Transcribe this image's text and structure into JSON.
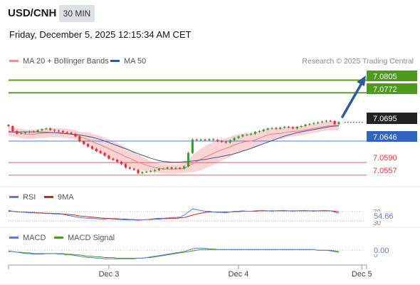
{
  "header": {
    "symbol": "USD/CNH",
    "timeframe": "30 MIN",
    "datetime": "Friday, December 5, 2025 12:15:34 AM CET"
  },
  "legend": {
    "ma20_label": "MA 20 + Bollinger Bands",
    "ma50_label": "MA 50",
    "credit": "Research © 2025 Trading Central"
  },
  "colors": {
    "candle_up": "#3a9e33",
    "candle_down": "#d93535",
    "ma20": "#e88080",
    "ma50": "#2f5b9a",
    "bollinger_fill": "#fad4d4",
    "target_lines": "#5aa01a",
    "pivot": "#4a7fd4",
    "support": "#e06060",
    "arrow": "#2f5b9a",
    "rsi": "#5a7fd0",
    "rsi_ma": "#d22020",
    "macd": "#5a7fd0",
    "macd_signal": "#4a9a20"
  },
  "price_levels": [
    {
      "label": "7.0805",
      "value": 7.0805,
      "style": "green-box"
    },
    {
      "label": "7.0772",
      "value": 7.0772,
      "style": "green-box"
    },
    {
      "label": "7.0695",
      "value": 7.0695,
      "style": "current"
    },
    {
      "label": "7.0646",
      "value": 7.0646,
      "style": "blue-box"
    },
    {
      "label": "7.0590",
      "value": 7.059,
      "style": "red-text"
    },
    {
      "label": "7.0557",
      "value": 7.0557,
      "style": "red-text"
    }
  ],
  "rsi": {
    "label": "RSI",
    "ma_label": "9MA",
    "value_label": "54.66",
    "level_70": "70",
    "level_30": "30"
  },
  "macd": {
    "label": "MACD",
    "signal_label": "MACD Signal",
    "value_label": "0.00",
    "zero_label": "0"
  },
  "x_axis": {
    "ticks": [
      "Dec 3",
      "Dec 4",
      "Dec 5"
    ]
  },
  "chart_data": {
    "type": "candlestick",
    "price_range": [
      7.054,
      7.083
    ],
    "x": [
      0,
      2,
      4,
      6,
      8,
      10,
      12,
      14,
      16,
      18,
      20,
      22,
      24,
      26,
      28,
      30,
      32,
      34,
      36,
      38,
      40,
      42,
      44,
      46,
      48,
      50,
      52,
      54,
      56,
      58,
      60,
      62,
      64,
      66,
      68,
      70,
      72,
      74,
      76,
      78,
      80,
      82,
      84,
      86,
      88,
      90,
      92,
      94,
      96,
      98,
      100,
      102,
      104,
      106,
      108,
      110,
      112,
      114,
      116,
      118,
      120,
      122,
      124,
      126,
      128,
      130,
      132,
      134,
      136,
      138,
      140,
      142,
      144,
      146,
      148,
      150,
      152,
      154,
      156,
      158
    ],
    "close": [
      7.0685,
      7.0672,
      7.0665,
      7.0667,
      7.0669,
      7.0671,
      7.067,
      7.0674,
      7.0677,
      7.0679,
      7.0675,
      7.0673,
      7.0672,
      7.0669,
      7.0668,
      7.0665,
      7.0658,
      7.0645,
      7.0638,
      7.0632,
      7.0626,
      7.062,
      7.0615,
      7.0608,
      7.06,
      7.0597,
      7.0592,
      7.0586,
      7.0577,
      7.0574,
      7.0571,
      7.0562,
      7.0565,
      7.0566,
      7.0568,
      7.057,
      7.0574,
      7.0574,
      7.0577,
      7.0574,
      7.0576,
      7.0574,
      7.058,
      7.0615,
      7.065,
      7.0648,
      7.065,
      7.0648,
      7.0651,
      7.0649,
      7.0646,
      7.0644,
      7.0642,
      7.0648,
      7.0654,
      7.0658,
      7.0662,
      7.0663,
      7.0665,
      7.067,
      7.0672,
      7.0676,
      7.0679,
      7.068,
      7.0678,
      7.0681,
      7.0683,
      7.0682,
      7.0679,
      7.0683,
      7.0685,
      7.0689,
      7.0691,
      7.0693,
      7.0695,
      7.0697,
      7.0699,
      7.0698,
      7.069,
      7.0695
    ],
    "ma20": [
      7.0672,
      7.067,
      7.0668,
      7.0666,
      7.0664,
      7.0664,
      7.0664,
      7.0665,
      7.0666,
      7.0667,
      7.0668,
      7.0668,
      7.0668,
      7.0667,
      7.0666,
      7.0664,
      7.0662,
      7.0658,
      7.0654,
      7.065,
      7.0645,
      7.064,
      7.0636,
      7.0631,
      7.0626,
      7.0621,
      7.0616,
      7.0611,
      7.0605,
      7.0601,
      7.0596,
      7.0591,
      7.0587,
      7.0583,
      7.058,
      7.0577,
      7.0575,
      7.0574,
      7.0573,
      7.0573,
      7.0573,
      7.0574,
      7.0575,
      7.058,
      7.0587,
      7.0593,
      7.0598,
      7.0604,
      7.0609,
      7.0614,
      7.0619,
      7.0623,
      7.0627,
      7.0631,
      7.0636,
      7.064,
      7.0643,
      7.0645,
      7.0646,
      7.0649,
      7.0653,
      7.0658,
      7.0662,
      7.0664,
      7.0665,
      7.0666,
      7.0668,
      7.067,
      7.0671,
      7.0672,
      7.0673,
      7.0675,
      7.0677,
      7.0679,
      7.0681,
      7.0683,
      7.0685,
      7.0686,
      7.0686,
      7.0686
    ],
    "boll_width": [
      0.0012,
      0.0012,
      0.0012,
      0.0012,
      0.0012,
      0.0012,
      0.0012,
      0.0012,
      0.0012,
      0.0012,
      0.0012,
      0.0012,
      0.0012,
      0.0012,
      0.0012,
      0.0012,
      0.0012,
      0.0012,
      0.0015,
      0.0018,
      0.002,
      0.0022,
      0.0023,
      0.0024,
      0.0025,
      0.0025,
      0.0025,
      0.0025,
      0.0024,
      0.0023,
      0.0022,
      0.002,
      0.0018,
      0.0016,
      0.0014,
      0.0013,
      0.0012,
      0.0012,
      0.0012,
      0.0012,
      0.0012,
      0.0012,
      0.0012,
      0.0016,
      0.0022,
      0.0026,
      0.0028,
      0.0029,
      0.003,
      0.003,
      0.0029,
      0.0028,
      0.0027,
      0.0026,
      0.0025,
      0.0024,
      0.0023,
      0.0022,
      0.0021,
      0.002,
      0.0019,
      0.0018,
      0.0017,
      0.0016,
      0.0015,
      0.0015,
      0.0014,
      0.0013,
      0.0013,
      0.0012,
      0.0012,
      0.0012,
      0.0012,
      0.0012,
      0.0012,
      0.0012,
      0.0012,
      0.0012,
      0.0012,
      0.0012
    ],
    "ma50": [
      7.067,
      7.067,
      7.067,
      7.067,
      7.067,
      7.067,
      7.067,
      7.067,
      7.0669,
      7.0669,
      7.0668,
      7.0668,
      7.0667,
      7.0666,
      7.0665,
      7.0664,
      7.0663,
      7.0662,
      7.066,
      7.0658,
      7.0656,
      7.0653,
      7.065,
      7.0646,
      7.0642,
      7.0638,
      7.0634,
      7.063,
      7.0626,
      7.0622,
      7.0617,
      7.0613,
      7.0609,
      7.0605,
      7.0601,
      7.0598,
      7.0595,
      7.0593,
      7.0592,
      7.0591,
      7.0591,
      7.0591,
      7.0592,
      7.0593,
      7.0594,
      7.0595,
      7.0597,
      7.0598,
      7.06,
      7.0602,
      7.0604,
      7.0606,
      7.0608,
      7.061,
      7.0613,
      7.0616,
      7.062,
      7.0623,
      7.0627,
      7.0631,
      7.0635,
      7.0639,
      7.0643,
      7.0647,
      7.0651,
      7.0655,
      7.0659,
      7.0662,
      7.0665,
      7.0668,
      7.067,
      7.0672,
      7.0674,
      7.0676,
      7.0678,
      7.068,
      7.0682,
      7.0684,
      7.0685,
      7.0686
    ],
    "rsi_range": [
      30,
      70
    ],
    "rsi": [
      62,
      60,
      58,
      58,
      57,
      56,
      56,
      55,
      55,
      54,
      54,
      53,
      53,
      52,
      50,
      48,
      46,
      44,
      43,
      42,
      42,
      41,
      40,
      40,
      41,
      40,
      39,
      39,
      38,
      38,
      38,
      37,
      38,
      39,
      40,
      41,
      42,
      42,
      43,
      44,
      44,
      45,
      50,
      58,
      66,
      64,
      62,
      60,
      60,
      58,
      57,
      57,
      56,
      58,
      60,
      60,
      61,
      60,
      60,
      61,
      62,
      62,
      61,
      60,
      61,
      62,
      62,
      61,
      60,
      61,
      62,
      62,
      61,
      60,
      61,
      62,
      62,
      61,
      58,
      55
    ],
    "rsi_ma": [
      60,
      60,
      59,
      58,
      58,
      57,
      57,
      56,
      56,
      55,
      55,
      54,
      54,
      53,
      52,
      51,
      50,
      48,
      47,
      46,
      45,
      44,
      43,
      42,
      42,
      41,
      41,
      40,
      40,
      39,
      39,
      38,
      38,
      39,
      39,
      40,
      40,
      41,
      41,
      42,
      42,
      43,
      44,
      47,
      50,
      53,
      55,
      57,
      58,
      58,
      58,
      58,
      58,
      58,
      59,
      59,
      60,
      60,
      60,
      60,
      61,
      61,
      61,
      61,
      61,
      61,
      61,
      61,
      61,
      61,
      61,
      61,
      61,
      61,
      61,
      61,
      61,
      61,
      60,
      59
    ],
    "macd_range": [
      -0.0015,
      0.0015
    ],
    "macd": [
      0.0002,
      0.0001,
      0.0,
      -0.0001,
      -0.0002,
      -0.0002,
      -0.0003,
      -0.0003,
      -0.0003,
      -0.0002,
      -0.0002,
      -0.0002,
      -0.0003,
      -0.0003,
      -0.0004,
      -0.0004,
      -0.0005,
      -0.0006,
      -0.0007,
      -0.0008,
      -0.0008,
      -0.0009,
      -0.0009,
      -0.001,
      -0.001,
      -0.001,
      -0.001,
      -0.001,
      -0.001,
      -0.001,
      -0.001,
      -0.0009,
      -0.0009,
      -0.0008,
      -0.0007,
      -0.0006,
      -0.0005,
      -0.0004,
      -0.0003,
      -0.0002,
      -0.0001,
      0.0,
      0.0001,
      0.0003,
      0.0005,
      0.0006,
      0.0006,
      0.0006,
      0.0005,
      0.0005,
      0.0004,
      0.0004,
      0.0004,
      0.0004,
      0.0004,
      0.0004,
      0.0004,
      0.0004,
      0.0004,
      0.0004,
      0.0004,
      0.0004,
      0.0004,
      0.0004,
      0.0004,
      0.0004,
      0.0004,
      0.0004,
      0.0004,
      0.0004,
      0.0004,
      0.0004,
      0.0004,
      0.0004,
      0.0003,
      0.0003,
      0.0003,
      0.0002,
      0.0001,
      0.0
    ],
    "macd_signal": [
      0.0001,
      0.0001,
      0.0,
      0.0,
      -0.0001,
      -0.0001,
      -0.0002,
      -0.0002,
      -0.0002,
      -0.0002,
      -0.0002,
      -0.0002,
      -0.0002,
      -0.0002,
      -0.0003,
      -0.0003,
      -0.0004,
      -0.0004,
      -0.0005,
      -0.0006,
      -0.0006,
      -0.0007,
      -0.0007,
      -0.0008,
      -0.0008,
      -0.0008,
      -0.0009,
      -0.0009,
      -0.0009,
      -0.0009,
      -0.0009,
      -0.0009,
      -0.0009,
      -0.0008,
      -0.0008,
      -0.0007,
      -0.0006,
      -0.0005,
      -0.0004,
      -0.0003,
      -0.0002,
      -0.0001,
      0.0,
      0.0001,
      0.0002,
      0.0003,
      0.0004,
      0.0004,
      0.0004,
      0.0004,
      0.0004,
      0.0004,
      0.0004,
      0.0004,
      0.0004,
      0.0004,
      0.0004,
      0.0004,
      0.0004,
      0.0004,
      0.0004,
      0.0004,
      0.0004,
      0.0004,
      0.0004,
      0.0004,
      0.0004,
      0.0004,
      0.0004,
      0.0004,
      0.0004,
      0.0004,
      0.0004,
      0.0004,
      0.0003,
      0.0003,
      0.0003,
      0.0003,
      0.0002,
      0.0001
    ],
    "x_ticks": [
      {
        "label": "Dec 3",
        "x": 48
      },
      {
        "label": "Dec 4",
        "x": 110
      },
      {
        "label": "Dec 5",
        "x": 169
      }
    ]
  }
}
